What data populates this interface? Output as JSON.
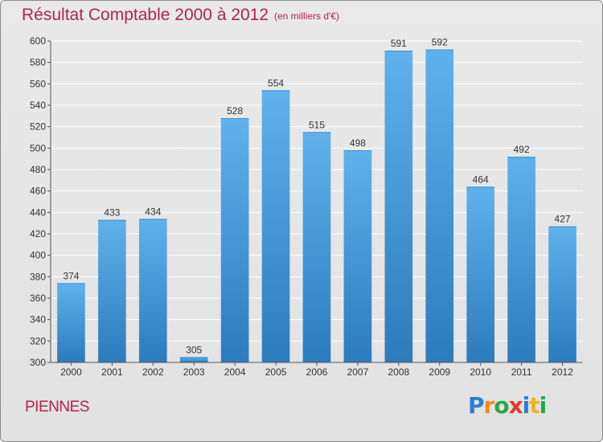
{
  "header": {
    "title": "Résultat Comptable 2000 à 2012",
    "subtitle": "(en milliers d'€)"
  },
  "footer": {
    "commune": "PIENNES",
    "logo_letters": [
      "P",
      "r",
      "o",
      "x",
      "i",
      "t",
      "i"
    ],
    "logo_colors": [
      "#2a7fd4",
      "#f08a1c",
      "#2aa84a",
      "#e23b2e",
      "#2a7fd4",
      "#f0b41c",
      "#2aa84a"
    ]
  },
  "chart_data": {
    "type": "bar",
    "title": "Résultat Comptable 2000 à 2012",
    "subtitle": "(en milliers d'€)",
    "categories": [
      "2000",
      "2001",
      "2002",
      "2003",
      "2004",
      "2005",
      "2006",
      "2007",
      "2008",
      "2009",
      "2010",
      "2011",
      "2012"
    ],
    "values": [
      374,
      433,
      434,
      305,
      528,
      554,
      515,
      498,
      591,
      592,
      464,
      492,
      427
    ],
    "ylim": [
      300,
      600
    ],
    "yticks": [
      300,
      320,
      340,
      360,
      380,
      400,
      420,
      440,
      460,
      480,
      500,
      520,
      540,
      560,
      580,
      600
    ],
    "grid": true,
    "bar_color_top": "#5fb2ec",
    "bar_color_bottom": "#2c7bbd",
    "text_color": "#333333"
  }
}
